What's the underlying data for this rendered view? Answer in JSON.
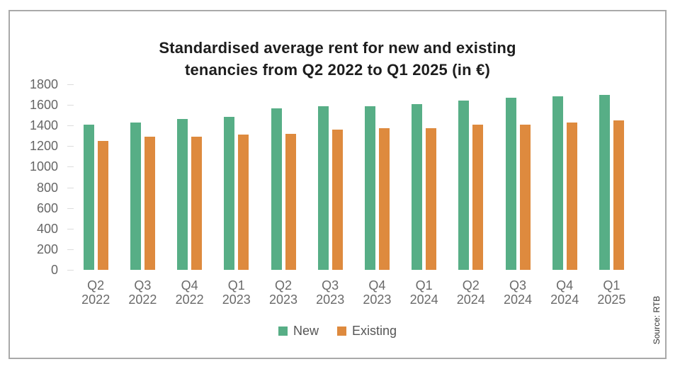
{
  "title": {
    "line1": "Standardised average rent for new and existing",
    "line2": "tenancies from Q2 2022 to Q1 2025 (in €)"
  },
  "source": {
    "label": "Source: RTB"
  },
  "legend": [
    {
      "name": "New",
      "color": "#57AE86"
    },
    {
      "name": "Existing",
      "color": "#DE8A3E"
    }
  ],
  "colors": {
    "new_bar": "#57AE86",
    "existing_bar": "#DE8A3E",
    "frame_border": "#a9a9a9",
    "axis_text": "#666666",
    "title_text": "#1d1d1d"
  },
  "chart_data": {
    "type": "bar",
    "title": "Standardised average rent for new and existing tenancies from Q2 2022 to Q1 2025 (in €)",
    "categories": [
      "Q2 2022",
      "Q3 2022",
      "Q4 2022",
      "Q1 2023",
      "Q2 2023",
      "Q3 2023",
      "Q4 2023",
      "Q1 2024",
      "Q2 2024",
      "Q3 2024",
      "Q4 2024",
      "Q1 2025"
    ],
    "series": [
      {
        "name": "New",
        "color": "#57AE86",
        "values": [
          1405,
          1430,
          1460,
          1485,
          1565,
          1585,
          1590,
          1605,
          1640,
          1670,
          1680,
          1695
        ]
      },
      {
        "name": "Existing",
        "color": "#DE8A3E",
        "values": [
          1250,
          1290,
          1290,
          1310,
          1320,
          1360,
          1375,
          1375,
          1410,
          1410,
          1430,
          1450
        ]
      }
    ],
    "xlabel": "",
    "ylabel": "",
    "ylim": [
      0,
      1800
    ],
    "ytick_step": 200,
    "yticks": [
      0,
      200,
      400,
      600,
      800,
      1000,
      1200,
      1400,
      1600,
      1800
    ],
    "grid": false,
    "legend_position": "bottom",
    "source": "Source: RTB"
  }
}
